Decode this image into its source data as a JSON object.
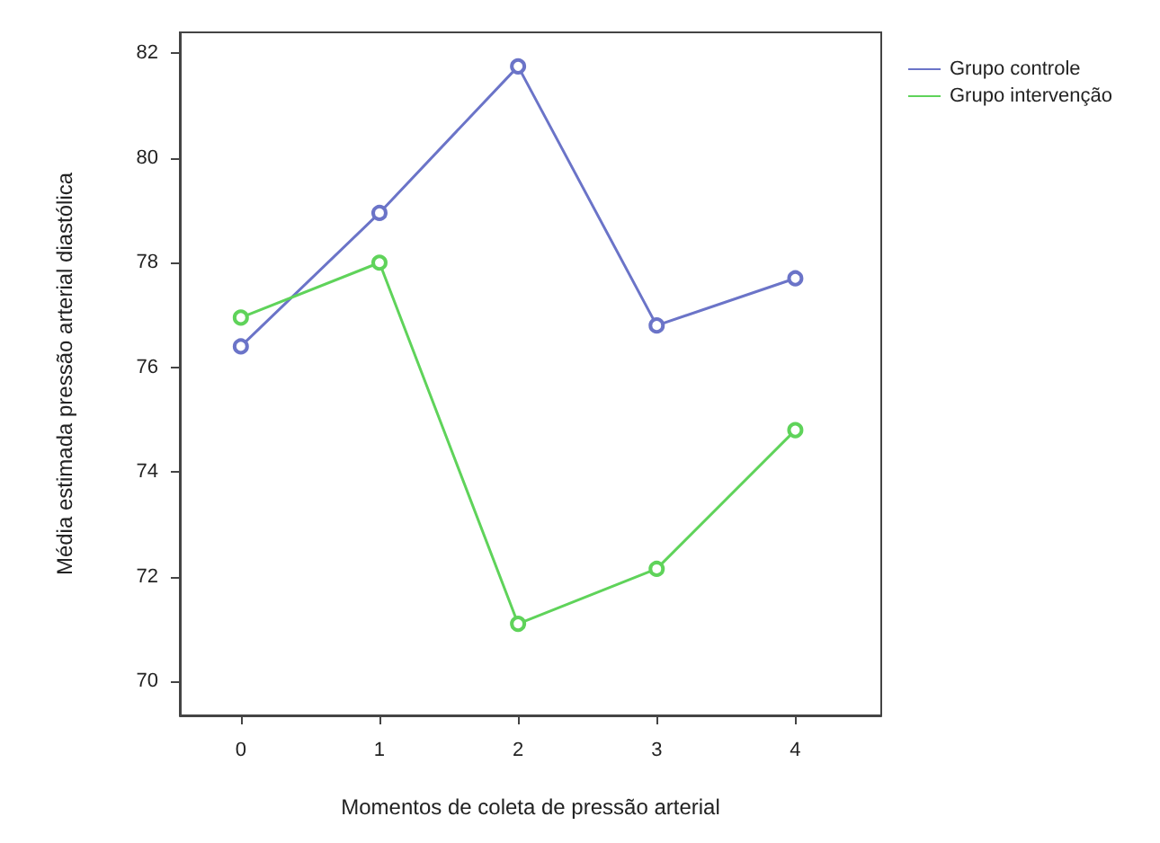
{
  "chart_data": {
    "type": "line",
    "xlabel": "Momentos de coleta de pressão arterial",
    "ylabel": "Média estimada pressão arterial diastólica",
    "x": [
      0,
      1,
      2,
      3,
      4
    ],
    "series": [
      {
        "name": "Grupo controle",
        "color": "#6b74c8",
        "values": [
          76.4,
          78.95,
          81.75,
          76.8,
          77.7
        ]
      },
      {
        "name": "Grupo intervenção",
        "color": "#5fd35a",
        "values": [
          76.95,
          78.0,
          71.1,
          72.15,
          74.8
        ]
      }
    ],
    "xlim": [
      -0.44,
      4.62
    ],
    "xticks": [
      0,
      1,
      2,
      3,
      4
    ],
    "ylim": [
      69.35,
      82.4
    ],
    "yticks": [
      70,
      72,
      74,
      76,
      78,
      80,
      82
    ],
    "grid": false,
    "legend": "top right",
    "marker": "circle",
    "line_style": "solid"
  }
}
